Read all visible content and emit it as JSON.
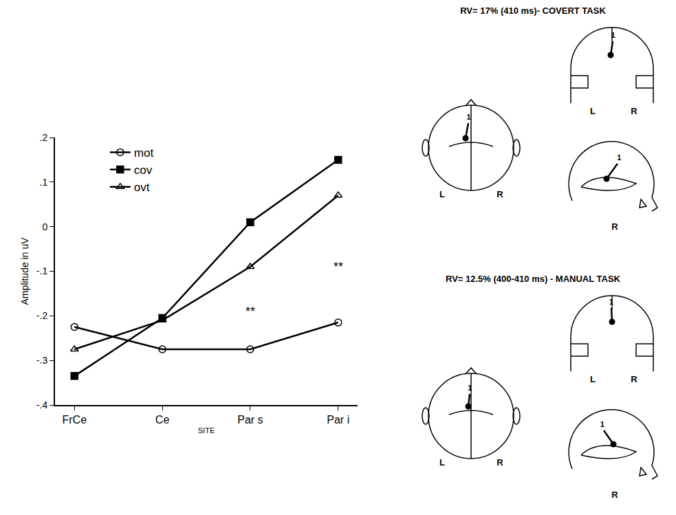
{
  "chart_data": {
    "type": "line",
    "x_label": "SITE",
    "y_label": "Amplitude in uV",
    "categories": [
      "FrCe",
      "Ce",
      "Par s",
      "Par i"
    ],
    "series": [
      {
        "name": "mot",
        "color": "#000000",
        "marker": "circle-open",
        "values": [
          -0.225,
          -0.275,
          -0.275,
          -0.215
        ]
      },
      {
        "name": "cov",
        "color": "#000000",
        "marker": "square",
        "values": [
          -0.335,
          -0.205,
          0.01,
          0.15
        ]
      },
      {
        "name": "ovt",
        "color": "#000000",
        "marker": "triangle-up-open",
        "values": [
          -0.275,
          -0.21,
          -0.09,
          0.07
        ]
      }
    ],
    "ylim": [
      -0.4,
      0.2
    ],
    "yticks": [
      {
        "value": 0.2,
        "label": ".2"
      },
      {
        "value": 0.1,
        "label": ".1"
      },
      0,
      {
        "value": -0.1,
        "label": "-.1"
      },
      {
        "value": -0.2,
        "label": "-.2"
      },
      {
        "value": -0.3,
        "label": "-.3"
      },
      {
        "value": -0.4,
        "label": "-.4"
      }
    ],
    "annotations": [
      {
        "text": "**",
        "category": "Par s",
        "y": -0.19
      },
      {
        "text": "**",
        "category": "Par i",
        "y": -0.09
      }
    ],
    "grid": false,
    "legend": "top left"
  },
  "head_maps": [
    {
      "title": "RV= 17% (410 ms)- COVERT TASK",
      "dipole": "1",
      "top_view": [
        "L",
        "R"
      ],
      "back_view": [
        "L",
        "R"
      ],
      "side_view": [
        "R"
      ]
    },
    {
      "title": "RV= 12.5% (400-410 ms) - MANUAL TASK",
      "dipole": "1",
      "top_view": [
        "L",
        "R"
      ],
      "back_view": [
        "L",
        "R"
      ],
      "side_view": [
        "R"
      ]
    }
  ]
}
